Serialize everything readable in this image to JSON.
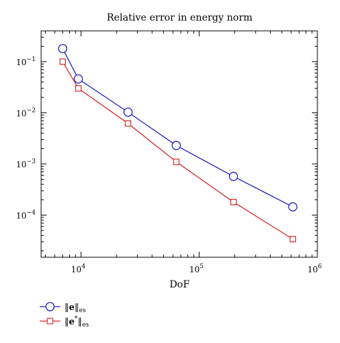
{
  "chart_data": {
    "type": "line",
    "title": "Relative error in energy norm",
    "xlabel": "DoF",
    "ylabel": "",
    "xscale": "log",
    "yscale": "log",
    "xlim": [
      4600,
      1000000
    ],
    "ylim": [
      1.5e-05,
      0.4
    ],
    "grid": false,
    "legend_position": "bottom-left, below plot",
    "x_ticks": [
      10000,
      100000,
      1000000
    ],
    "x_tick_labels": [
      {
        "base": "10",
        "exp": "4"
      },
      {
        "base": "10",
        "exp": "5"
      },
      {
        "base": "10",
        "exp": "6"
      }
    ],
    "y_ticks": [
      0.0001,
      0.001,
      0.01,
      0.1
    ],
    "y_tick_labels": [
      {
        "base": "10",
        "exp": "−4"
      },
      {
        "base": "10",
        "exp": "−3"
      },
      {
        "base": "10",
        "exp": "−2"
      },
      {
        "base": "10",
        "exp": "−1"
      }
    ],
    "series": [
      {
        "name": "‖e‖es",
        "legend": {
          "norm_open": "‖",
          "symbol": "e",
          "norm_close": "‖",
          "sup": "",
          "sub": "es"
        },
        "color": "#1f1fbf",
        "marker": "circle",
        "x": [
          7000,
          9500,
          25000,
          64000,
          195000,
          620000
        ],
        "y": [
          0.18,
          0.046,
          0.0103,
          0.0023,
          0.00057,
          0.000145
        ]
      },
      {
        "name": "‖e*‖es",
        "legend": {
          "norm_open": "‖",
          "symbol": "e",
          "norm_close": "‖",
          "sup": "*",
          "sub": "es"
        },
        "color": "#d42a2a",
        "marker": "square",
        "x": [
          7000,
          9500,
          25000,
          64000,
          195000,
          620000
        ],
        "y": [
          0.1,
          0.03,
          0.0062,
          0.0011,
          0.00018,
          3.4e-05
        ]
      }
    ]
  }
}
